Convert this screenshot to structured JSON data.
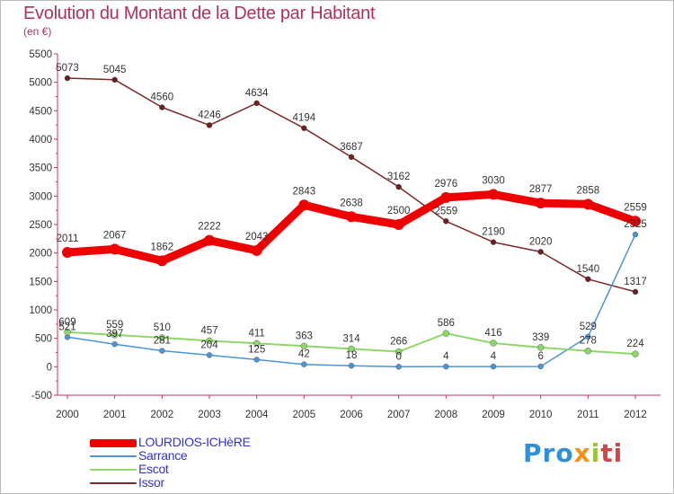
{
  "chart_data": {
    "type": "line",
    "title": "Evolution du Montant de la Dette par Habitant",
    "subtitle": "(en €)",
    "xlabel": "",
    "ylabel": "",
    "x": [
      "2000",
      "2001",
      "2002",
      "2003",
      "2004",
      "2005",
      "2006",
      "2007",
      "2008",
      "2009",
      "2010",
      "2011",
      "2012"
    ],
    "ylim": [
      -500,
      5500
    ],
    "yticks": [
      -500,
      0,
      500,
      1000,
      1500,
      2000,
      2500,
      3000,
      3500,
      4000,
      4500,
      5000,
      5500
    ],
    "grid": false,
    "legend_position": "bottom-left",
    "series": [
      {
        "name": "LOURDIOS-ICHèRE",
        "color": "#ee0000",
        "values": [
          2011,
          2067,
          1862,
          2222,
          2043,
          2843,
          2638,
          2500,
          2976,
          3030,
          2877,
          2858,
          2559
        ]
      },
      {
        "name": "Sarrance",
        "color": "#4f94d4",
        "values": [
          521,
          397,
          281,
          204,
          125,
          42,
          18,
          0,
          4,
          4,
          6,
          529,
          2325
        ]
      },
      {
        "name": "Escot",
        "color": "#8fd66b",
        "values": [
          609,
          559,
          510,
          457,
          411,
          363,
          314,
          266,
          586,
          416,
          339,
          278,
          224
        ]
      },
      {
        "name": "Issor",
        "color": "#7a2a2a",
        "values": [
          5073,
          5045,
          4560,
          4246,
          4634,
          4194,
          3687,
          3162,
          2559,
          2190,
          2020,
          1540,
          1317
        ]
      }
    ],
    "data_labels": [
      {
        "series": 0,
        "labels": [
          "2011",
          "2067",
          "1862",
          "2222",
          "2043",
          "2843",
          "2638",
          "2500",
          "2976",
          "3030",
          "2877",
          "2858",
          "2559"
        ]
      },
      {
        "series": 1,
        "labels": [
          "521",
          "397",
          "281",
          "204",
          "125",
          "42",
          "18",
          "0",
          "4",
          "4",
          "6",
          "529",
          "2325"
        ]
      },
      {
        "series": 2,
        "labels": [
          "609",
          "559",
          "510",
          "457",
          "411",
          "363",
          "314",
          "266",
          "586",
          "416",
          "339",
          "278",
          "224"
        ]
      },
      {
        "series": 3,
        "labels": [
          "5073",
          "5045",
          "4560",
          "4246",
          "4634",
          "4194",
          "3687",
          "3162",
          "2559",
          "2190",
          "2020",
          "1540",
          "1317"
        ]
      }
    ]
  },
  "brand": {
    "p1": "Pro",
    "p2": "x",
    "p3": "i",
    "p4": "ti"
  }
}
